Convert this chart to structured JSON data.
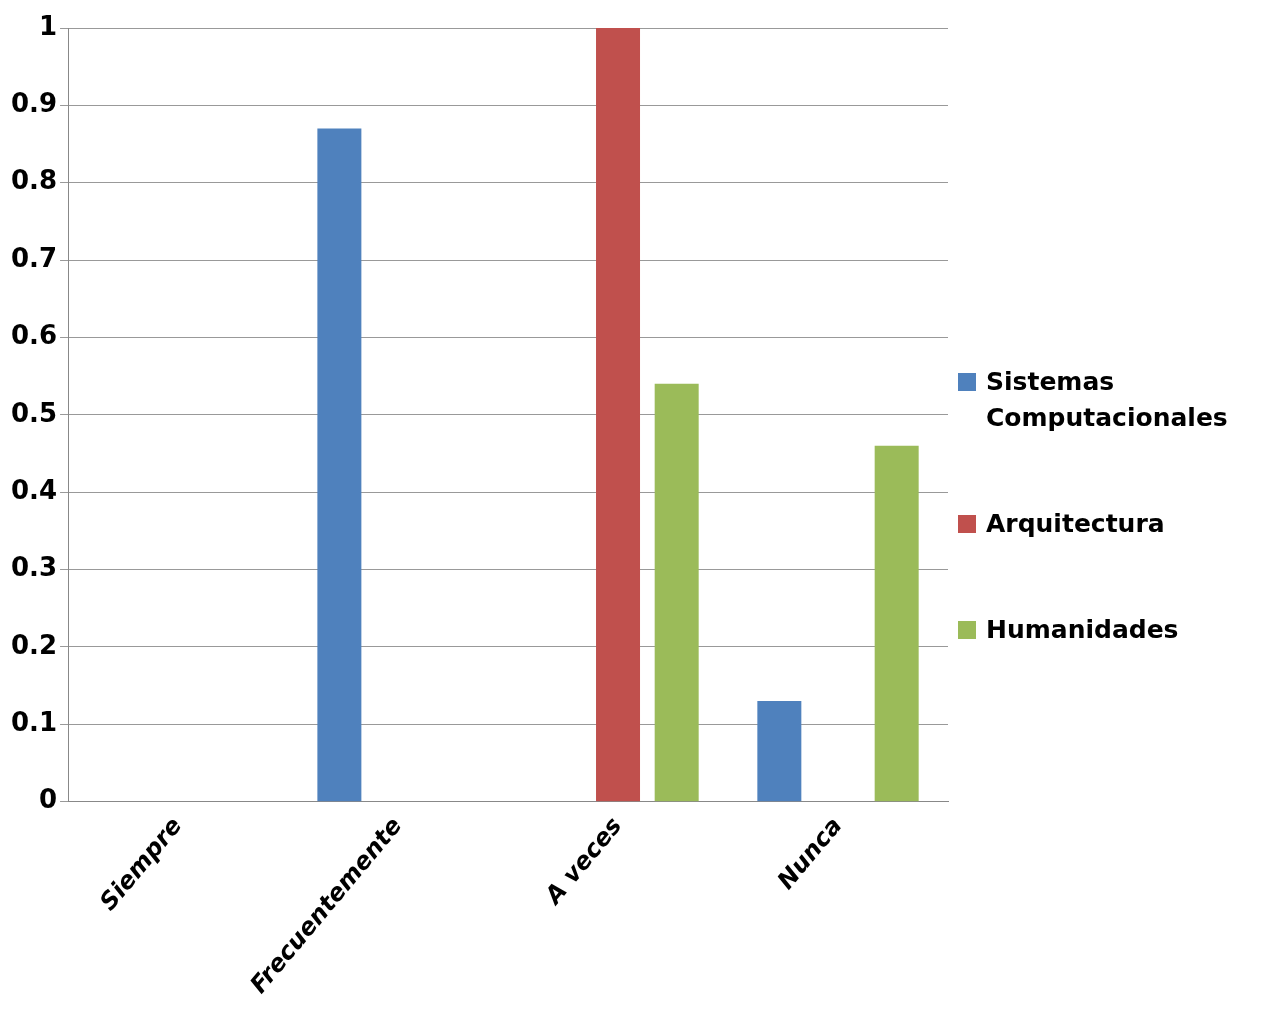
{
  "chart_data": {
    "type": "bar",
    "categories": [
      "Siempre",
      "Frecuentemente",
      "A veces",
      "Nunca"
    ],
    "series": [
      {
        "name": "Sistemas Computacionales",
        "color": "#4f81bd",
        "values": [
          0,
          0.87,
          0,
          0.13
        ]
      },
      {
        "name": "Arquitectura",
        "color": "#c0504d",
        "values": [
          0,
          0,
          1,
          0
        ]
      },
      {
        "name": "Humanidades",
        "color": "#9bbb59",
        "values": [
          0,
          0,
          0.54,
          0.46
        ]
      }
    ],
    "ylim": [
      0,
      1
    ],
    "yticks": [
      0,
      0.1,
      0.2,
      0.3,
      0.4,
      0.5,
      0.6,
      0.7,
      0.8,
      0.9,
      1
    ],
    "grid": "y",
    "legend": "right"
  }
}
